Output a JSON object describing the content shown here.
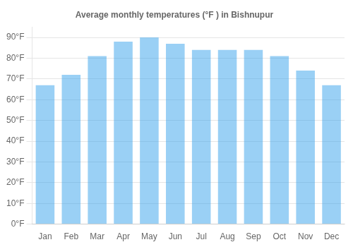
{
  "chart_data": {
    "type": "bar",
    "title": "Average monthly temperatures (°F ) in Bishnupur",
    "categories": [
      "Jan",
      "Feb",
      "Mar",
      "Apr",
      "May",
      "Jun",
      "Jul",
      "Aug",
      "Sep",
      "Oct",
      "Nov",
      "Dec"
    ],
    "values": [
      67,
      72,
      81,
      88,
      90,
      87,
      84,
      84,
      84,
      81,
      74,
      67
    ],
    "ylim": [
      0,
      95
    ],
    "yticks": [
      {
        "value": 0,
        "label": "0°F"
      },
      {
        "value": 10,
        "label": "10°F"
      },
      {
        "value": 20,
        "label": "20°F"
      },
      {
        "value": 30,
        "label": "30°F"
      },
      {
        "value": 40,
        "label": "40°F"
      },
      {
        "value": 50,
        "label": "50°F"
      },
      {
        "value": 60,
        "label": "60°F"
      },
      {
        "value": 70,
        "label": "70°F"
      },
      {
        "value": 80,
        "label": "80°F"
      },
      {
        "value": 90,
        "label": "90°F"
      }
    ],
    "grid": true
  }
}
